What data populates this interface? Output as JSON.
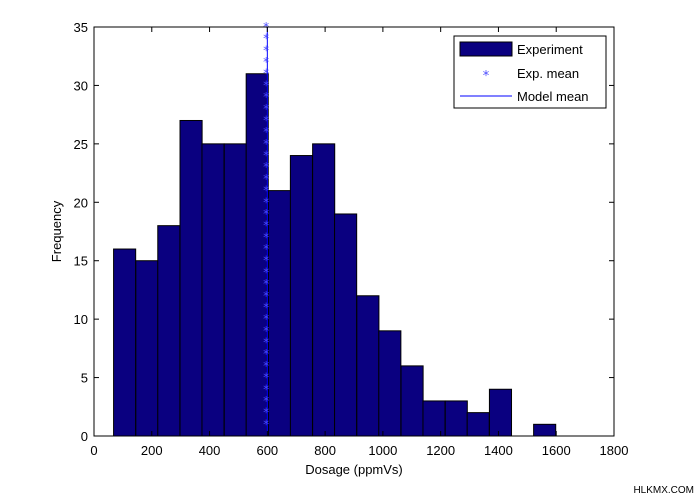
{
  "chart_data": {
    "type": "bar",
    "title": "",
    "xlabel": "Dosage (ppmVs)",
    "ylabel": "Frequency",
    "xlim": [
      0,
      1800
    ],
    "ylim": [
      0,
      35
    ],
    "xticks": [
      0,
      200,
      400,
      600,
      800,
      1000,
      1200,
      1400,
      1600,
      1800
    ],
    "yticks": [
      0,
      5,
      10,
      15,
      20,
      25,
      30,
      35
    ],
    "grid": false,
    "legend_position": "top-right",
    "bin_width": 76.5,
    "series": [
      {
        "name": "Experiment",
        "kind": "histogram",
        "color": "#0a0080",
        "edge_color": "#000000",
        "bin_centers": [
          106,
          183,
          259,
          336,
          412,
          489,
          565,
          642,
          718,
          795,
          871,
          948,
          1024,
          1101,
          1177,
          1254,
          1330,
          1407,
          1483,
          1560
        ],
        "values": [
          16,
          15,
          18,
          27,
          25,
          25,
          31,
          21,
          24,
          25,
          19,
          12,
          9,
          6,
          3,
          3,
          2,
          4,
          0,
          1
        ]
      },
      {
        "name": "Exp. mean",
        "kind": "markers",
        "marker": "*",
        "color": "#4a4aff",
        "x": 596,
        "y_values": [
          1,
          2,
          3,
          4,
          5,
          6,
          7,
          8,
          9,
          10,
          11,
          12,
          13,
          14,
          15,
          16,
          17,
          18,
          19,
          20,
          21,
          22,
          23,
          24,
          25,
          26,
          27,
          28,
          29,
          30,
          31,
          32,
          33,
          34,
          35
        ]
      },
      {
        "name": "Model mean",
        "kind": "vline",
        "color": "#0000ff",
        "x": 600,
        "y_range": [
          0,
          35
        ]
      }
    ]
  },
  "watermark": "HLKMX.COM"
}
